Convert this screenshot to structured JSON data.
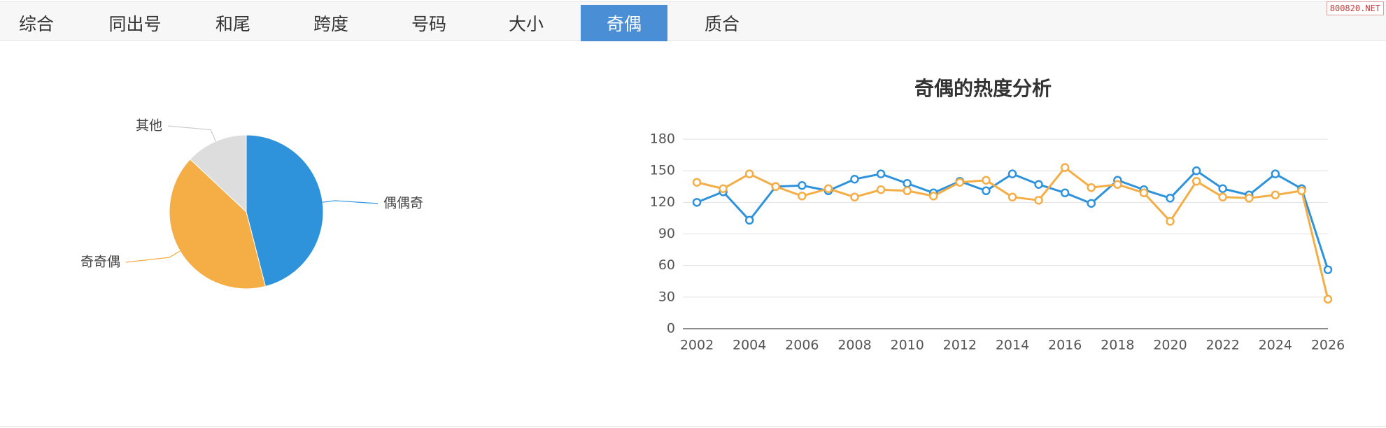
{
  "tabs": [
    {
      "label": "综合",
      "active": false
    },
    {
      "label": "同出号",
      "active": false
    },
    {
      "label": "和尾",
      "active": false
    },
    {
      "label": "跨度",
      "active": false
    },
    {
      "label": "号码",
      "active": false
    },
    {
      "label": "大小",
      "active": false
    },
    {
      "label": "奇偶",
      "active": true
    },
    {
      "label": "质合",
      "active": false
    }
  ],
  "watermark": "800820.NET",
  "chart_data": [
    {
      "type": "pie",
      "title": "",
      "slices": [
        {
          "label": "偶偶奇",
          "value": 46,
          "color": "#2f93dc"
        },
        {
          "label": "奇奇偶",
          "value": 41,
          "color": "#f5ad45"
        },
        {
          "label": "其他",
          "value": 13,
          "color": "#dddddd"
        }
      ]
    },
    {
      "type": "line",
      "title": "奇偶的热度分析",
      "xlabel": "",
      "ylabel": "",
      "ylim": [
        0,
        180
      ],
      "yticks": [
        0,
        30,
        60,
        90,
        120,
        150,
        180
      ],
      "xticks": [
        2002,
        2004,
        2006,
        2008,
        2010,
        2012,
        2014,
        2016,
        2018,
        2020,
        2022,
        2024,
        2026
      ],
      "grid": true,
      "x": [
        2002,
        2003,
        2004,
        2005,
        2006,
        2007,
        2008,
        2009,
        2010,
        2011,
        2012,
        2013,
        2014,
        2015,
        2016,
        2017,
        2018,
        2019,
        2020,
        2021,
        2022,
        2023,
        2024,
        2025,
        2026
      ],
      "series": [
        {
          "color": "#2f93dc",
          "values": [
            120,
            130,
            103,
            135,
            136,
            131,
            142,
            147,
            138,
            129,
            140,
            131,
            147,
            137,
            129,
            119,
            141,
            132,
            124,
            150,
            133,
            127,
            147,
            133,
            56
          ]
        },
        {
          "color": "#f5ad45",
          "values": [
            139,
            133,
            147,
            135,
            126,
            133,
            125,
            132,
            131,
            126,
            139,
            141,
            125,
            122,
            153,
            134,
            137,
            129,
            102,
            140,
            125,
            124,
            127,
            131,
            28
          ]
        }
      ]
    }
  ]
}
